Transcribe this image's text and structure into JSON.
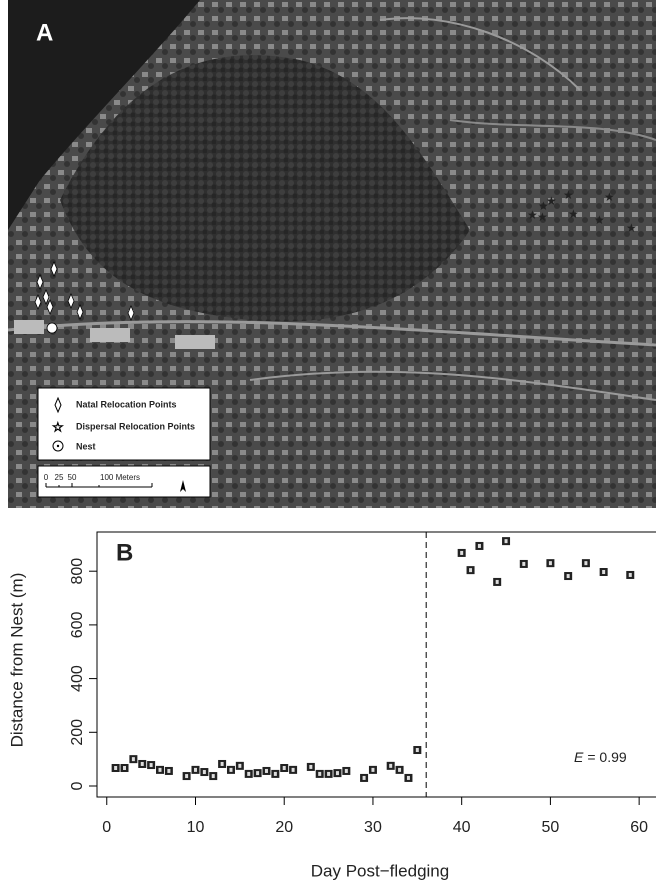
{
  "map": {
    "panel_label": "A",
    "legend": [
      "Natal Relocation Points",
      "Dispersal Relocation Points",
      "Nest"
    ],
    "scale_labels": [
      "0",
      "25",
      "50",
      "100 Meters"
    ]
  },
  "chart_data": {
    "type": "scatter",
    "panel_label": "B",
    "xlabel": "Day Post−fledging",
    "ylabel": "Distance from Nest (m)",
    "annotation": {
      "variable": "E",
      "text": "= 0.99"
    },
    "x": [
      1,
      2,
      3,
      4,
      5,
      6,
      7,
      9,
      10,
      11,
      12,
      13,
      14,
      15,
      16,
      17,
      18,
      19,
      20,
      21,
      23,
      24,
      25,
      26,
      27,
      29,
      30,
      32,
      33,
      34,
      35,
      40,
      41,
      42,
      44,
      45,
      47,
      50,
      52,
      54,
      56,
      59
    ],
    "values": [
      67,
      67,
      100,
      82,
      78,
      60,
      56,
      37,
      60,
      52,
      37,
      82,
      60,
      75,
      45,
      48,
      56,
      45,
      67,
      60,
      71,
      45,
      45,
      48,
      56,
      30,
      60,
      75,
      60,
      30,
      134,
      868,
      804,
      894,
      760,
      912,
      827,
      830,
      782,
      830,
      797,
      786
    ],
    "color": "#222222",
    "vline": 36,
    "xlim": [
      -1.1,
      61.9
    ],
    "ylim": [
      -41,
      946
    ],
    "xticks": [
      0,
      10,
      20,
      30,
      40,
      50,
      60
    ],
    "yticks": [
      0,
      200,
      400,
      600,
      800
    ]
  }
}
